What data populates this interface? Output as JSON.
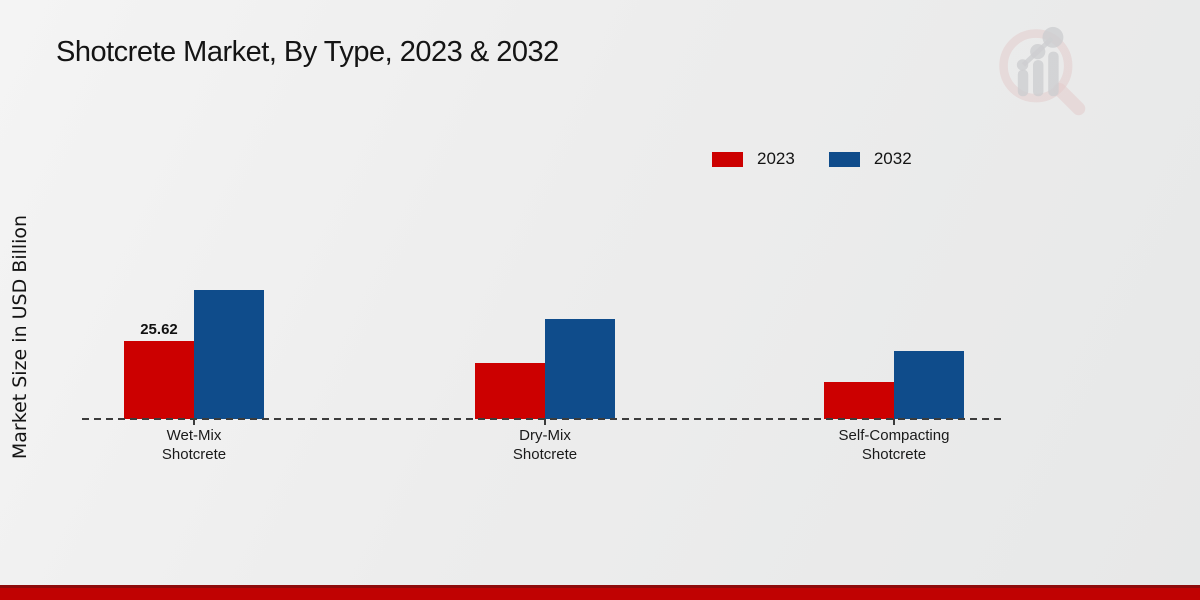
{
  "title": "Shotcrete Market, By Type, 2023 & 2032",
  "colors": {
    "series_2023": "#cc0000",
    "series_2032": "#0f4c8b",
    "footer_accent": "#c00202",
    "footer_accent_dark": "#8e0b0b",
    "axis": "#3c3c3c",
    "text": "#141414"
  },
  "legend": {
    "position": "top-right",
    "items": [
      {
        "label": "2023",
        "color": "#cc0000"
      },
      {
        "label": "2032",
        "color": "#0f4c8b"
      }
    ]
  },
  "watermark": "market-research-future-logo",
  "chart_data": {
    "type": "bar",
    "title": "Shotcrete Market, By Type, 2023 & 2032",
    "xlabel": "",
    "ylabel": "Market Size in USD Billion",
    "categories": [
      "Wet-Mix Shotcrete",
      "Dry-Mix Shotcrete",
      "Self-Compacting Shotcrete"
    ],
    "category_label_lines": [
      [
        "Wet-Mix",
        "Shotcrete"
      ],
      [
        "Dry-Mix",
        "Shotcrete"
      ],
      [
        "Self-Compacting",
        "Shotcrete"
      ]
    ],
    "series": [
      {
        "name": "2023",
        "color": "#cc0000",
        "values": [
          25.62,
          18.4,
          12.2
        ]
      },
      {
        "name": "2032",
        "color": "#0f4c8b",
        "values": [
          42.4,
          32.8,
          22.3
        ]
      }
    ],
    "annotations": [
      {
        "series": "2023",
        "category": "Wet-Mix Shotcrete",
        "text": "25.62"
      }
    ],
    "ylim": [
      0,
      48
    ],
    "grid": false,
    "baseline_style": "dashed",
    "legend_position": "top-right"
  }
}
